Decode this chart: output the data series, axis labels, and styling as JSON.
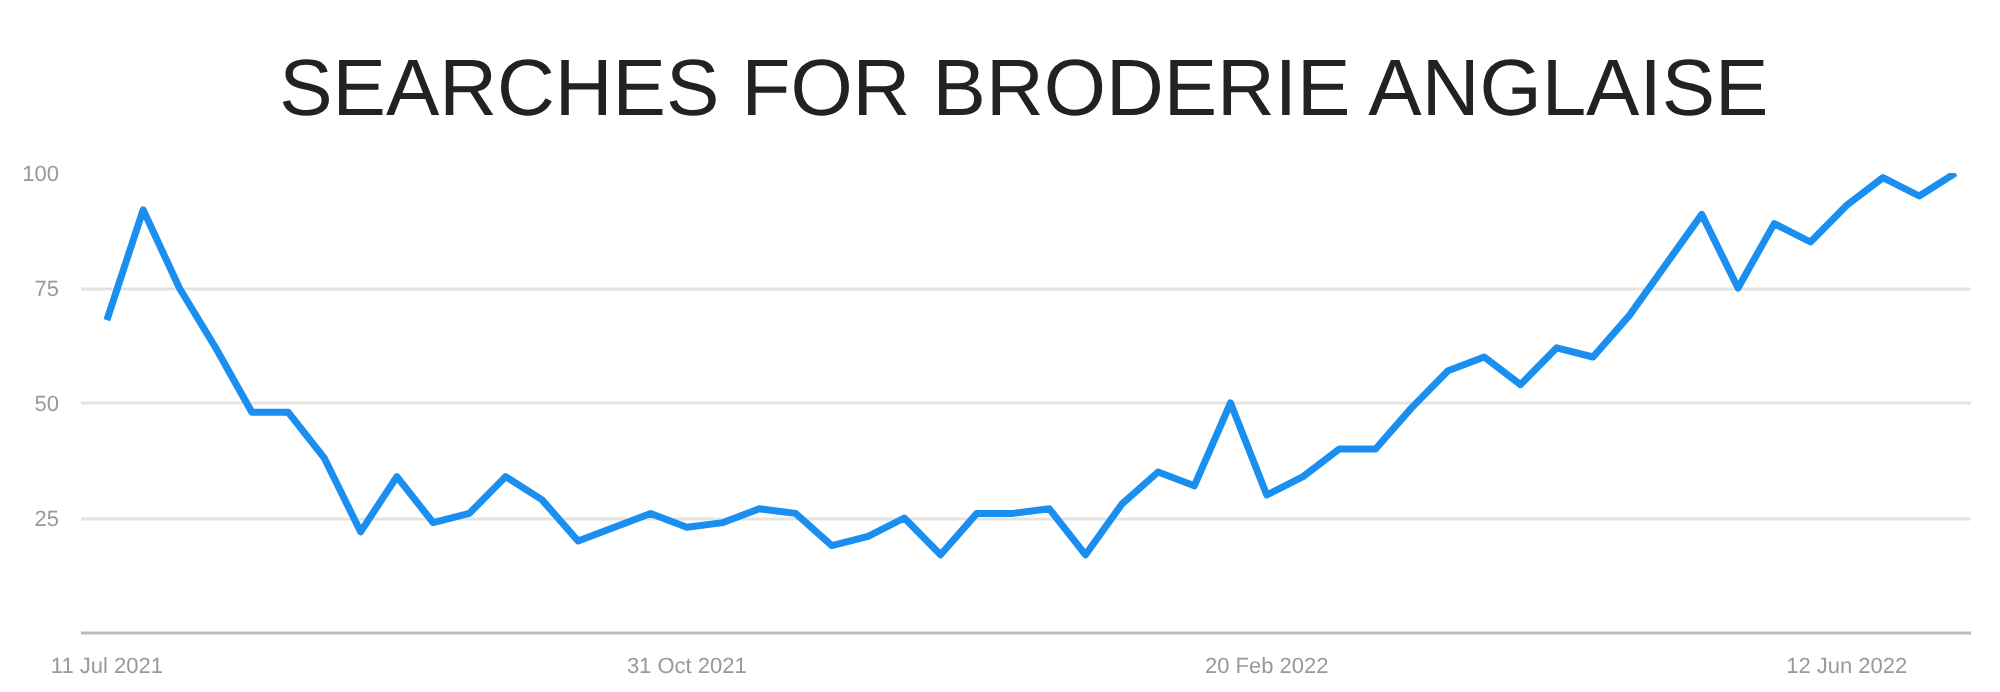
{
  "chart_data": {
    "type": "line",
    "title": "SEARCHES FOR BRODERIE ANGLAISE",
    "x": [
      "2021-07-11",
      "2021-07-18",
      "2021-07-25",
      "2021-08-01",
      "2021-08-08",
      "2021-08-15",
      "2021-08-22",
      "2021-08-29",
      "2021-09-05",
      "2021-09-12",
      "2021-09-19",
      "2021-09-26",
      "2021-10-03",
      "2021-10-10",
      "2021-10-17",
      "2021-10-24",
      "2021-10-31",
      "2021-11-07",
      "2021-11-14",
      "2021-11-21",
      "2021-11-28",
      "2021-12-05",
      "2021-12-12",
      "2021-12-19",
      "2021-12-26",
      "2022-01-02",
      "2022-01-09",
      "2022-01-16",
      "2022-01-23",
      "2022-01-30",
      "2022-02-06",
      "2022-02-13",
      "2022-02-20",
      "2022-02-27",
      "2022-03-06",
      "2022-03-13",
      "2022-03-20",
      "2022-03-27",
      "2022-04-03",
      "2022-04-10",
      "2022-04-17",
      "2022-04-24",
      "2022-05-01",
      "2022-05-08",
      "2022-05-15",
      "2022-05-22",
      "2022-05-29",
      "2022-06-05",
      "2022-06-12",
      "2022-06-19",
      "2022-06-26",
      "2022-07-03"
    ],
    "series": [
      {
        "color": "#1a8ff0",
        "values": [
          68,
          92,
          75,
          62,
          48,
          48,
          38,
          22,
          34,
          24,
          26,
          34,
          29,
          20,
          23,
          26,
          23,
          24,
          27,
          26,
          19,
          21,
          25,
          17,
          26,
          26,
          27,
          17,
          28,
          35,
          32,
          50,
          30,
          34,
          40,
          40,
          49,
          57,
          60,
          54,
          62,
          60,
          69,
          80,
          91,
          75,
          89,
          85,
          93,
          99,
          95,
          100
        ]
      }
    ],
    "xlim": [
      "2021-07-06",
      "2022-07-06"
    ],
    "xticks": [
      {
        "value": "2021-07-11",
        "label": "11 Jul 2021"
      },
      {
        "value": "2021-10-31",
        "label": "31 Oct 2021"
      },
      {
        "value": "2022-02-20",
        "label": "20 Feb 2022"
      },
      {
        "value": "2022-06-12",
        "label": "12 Jun 2022"
      }
    ],
    "ylim": [
      0,
      100
    ],
    "yticks": [
      25,
      50,
      75,
      100
    ],
    "grid": "y",
    "line_style": "solid",
    "marker": "none"
  }
}
